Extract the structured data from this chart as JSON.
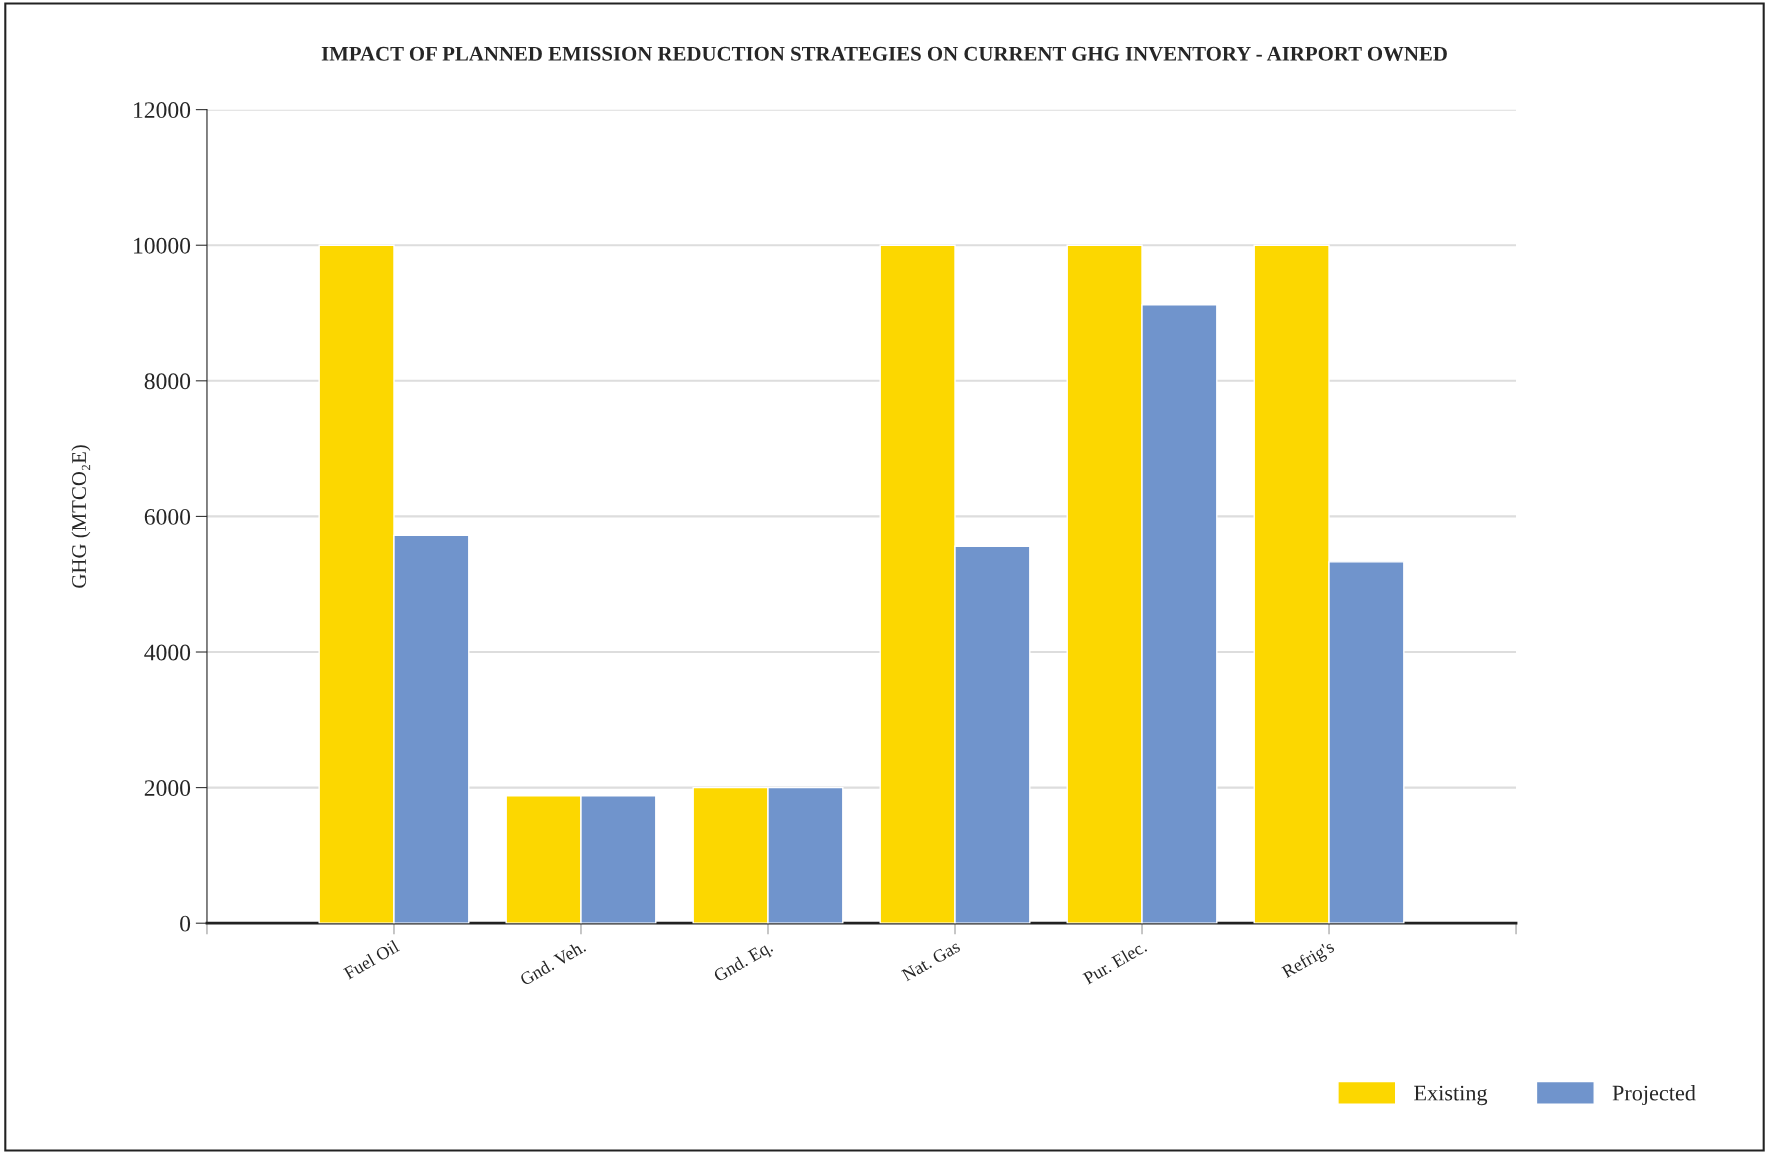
{
  "chart_data": {
    "type": "bar",
    "title": "IMPACT OF PLANNED EMISSION REDUCTION STRATEGIES ON CURRENT GHG INVENTORY - AIRPORT OWNED",
    "ylabel": "GHG (MTCO₂E)",
    "categories": [
      "Fuel Oil",
      "Gnd. Veh.",
      "Gnd. Eq.",
      "Nat. Gas",
      "Pur. Elec.",
      "Refrig's"
    ],
    "series": [
      {
        "name": "Existing",
        "color": "#fcd700",
        "values": [
          10000,
          1880,
          2000,
          10000,
          10000,
          10000
        ]
      },
      {
        "name": "Projected",
        "color": "#7094cc",
        "values": [
          5720,
          1880,
          2000,
          5560,
          9120,
          5330
        ]
      }
    ],
    "ylim": [
      0,
      12000
    ],
    "yticks": [
      0,
      2000,
      4000,
      6000,
      8000,
      10000,
      12000
    ],
    "grid": "y",
    "legend": "bottom right"
  }
}
